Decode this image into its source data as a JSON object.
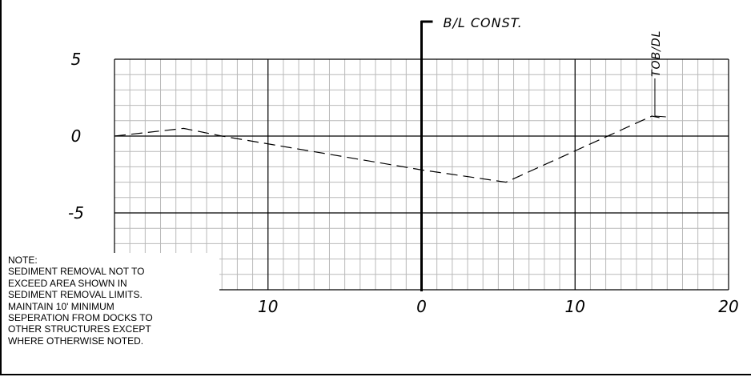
{
  "chart_data": {
    "type": "line",
    "baseline_label": "B/L CONST.",
    "callout_label": "TOB/DL",
    "x_tick_labels": [
      "10",
      "0",
      "10",
      "20"
    ],
    "x_tick_values": [
      -10,
      0,
      10,
      20
    ],
    "y_tick_labels": [
      "5",
      "0",
      "-5"
    ],
    "y_tick_values": [
      5,
      0,
      -5
    ],
    "xlim": [
      -20,
      20
    ],
    "ylim": [
      -10,
      5
    ],
    "grid": true,
    "series": [
      {
        "style": "dashed",
        "x": [
          -20,
          -15.5,
          -13,
          0,
          5.5,
          15,
          15.5
        ],
        "y": [
          0,
          0.5,
          0,
          -2.2,
          -3,
          1.3,
          1.2
        ]
      }
    ]
  },
  "note": {
    "lines": [
      "NOTE:",
      "SEDIMENT REMOVAL NOT TO",
      "EXCEED AREA SHOWN IN",
      "SEDIMENT REMOVAL LIMITS.",
      "MAINTAIN 10' MINIMUM",
      "SEPERATION FROM DOCKS TO",
      "OTHER STRUCTURES EXCEPT",
      "WHERE OTHERWISE NOTED."
    ]
  }
}
